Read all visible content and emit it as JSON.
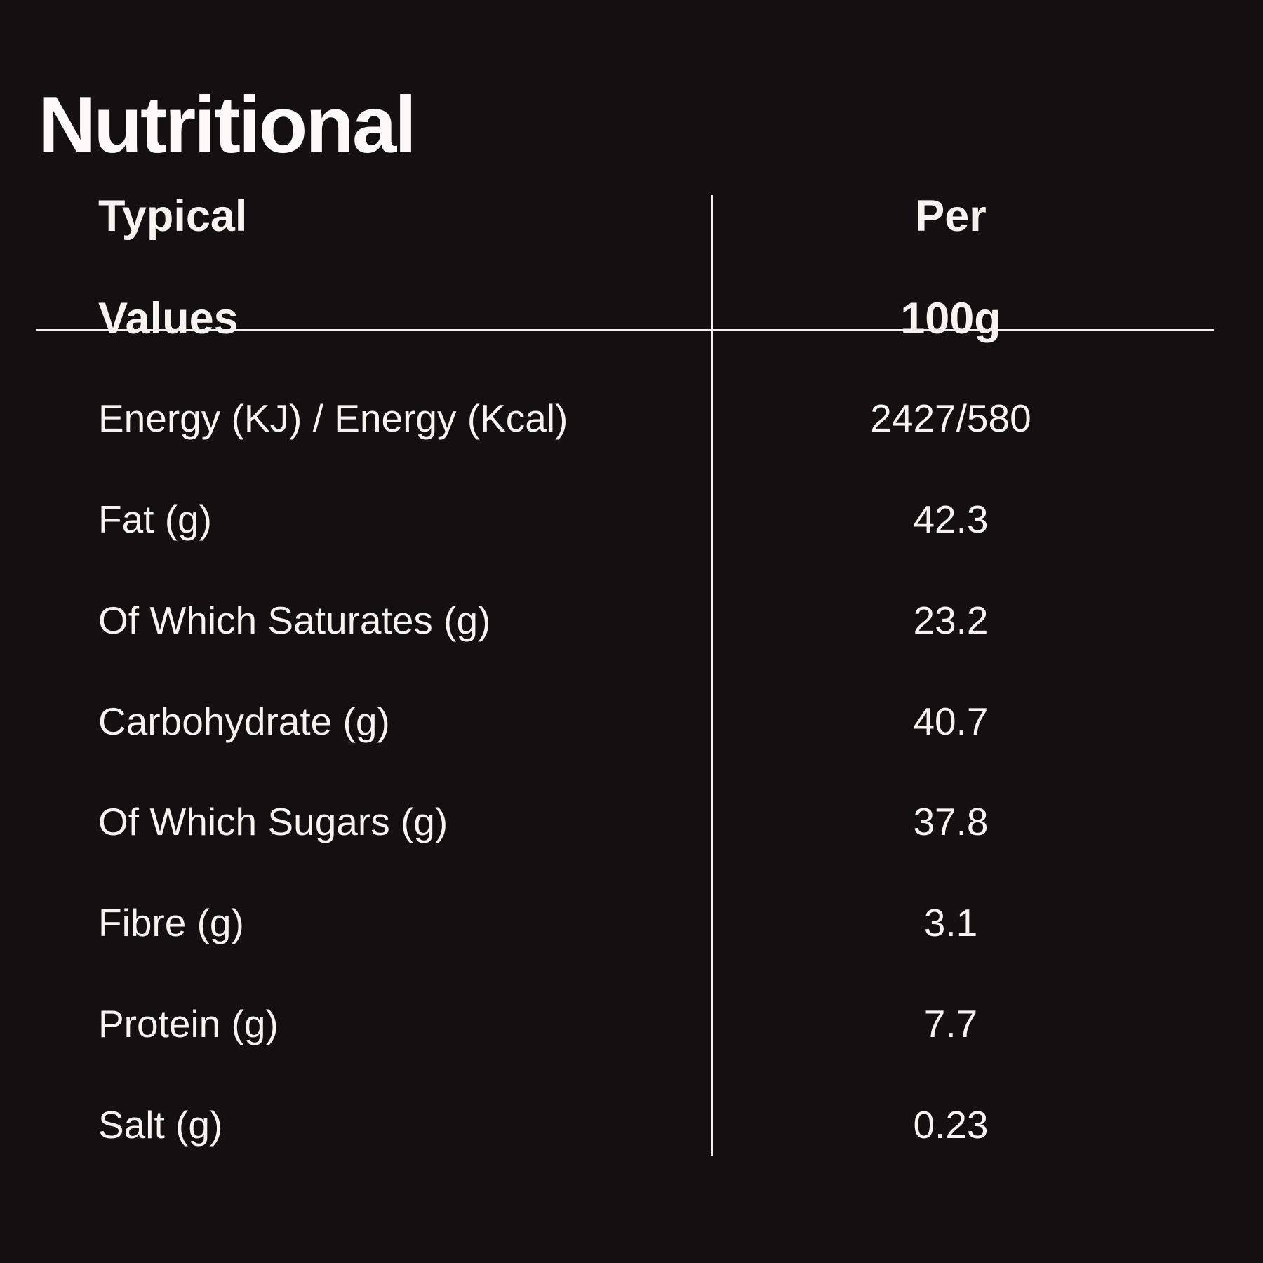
{
  "title": "Nutritional",
  "table": {
    "header": {
      "col1": [
        "Typical",
        "Values"
      ],
      "col2": [
        "Per",
        "100g"
      ]
    },
    "rows": [
      {
        "label": "Energy (KJ) / Energy (Kcal)",
        "value": "2427/580"
      },
      {
        "label": "Fat (g)",
        "value": "42.3"
      },
      {
        "label": "Of Which Saturates (g)",
        "value": "23.2"
      },
      {
        "label": "Carbohydrate (g)",
        "value": "40.7"
      },
      {
        "label": "Of Which Sugars (g)",
        "value": "37.8"
      },
      {
        "label": "Fibre (g)",
        "value": "3.1"
      },
      {
        "label": "Protein (g)",
        "value": "7.7"
      },
      {
        "label": "Salt (g)",
        "value": "0.23"
      }
    ]
  },
  "colors": {
    "background": "#141011",
    "text": "#f6f4f1",
    "rule": "#f3f1ee"
  }
}
